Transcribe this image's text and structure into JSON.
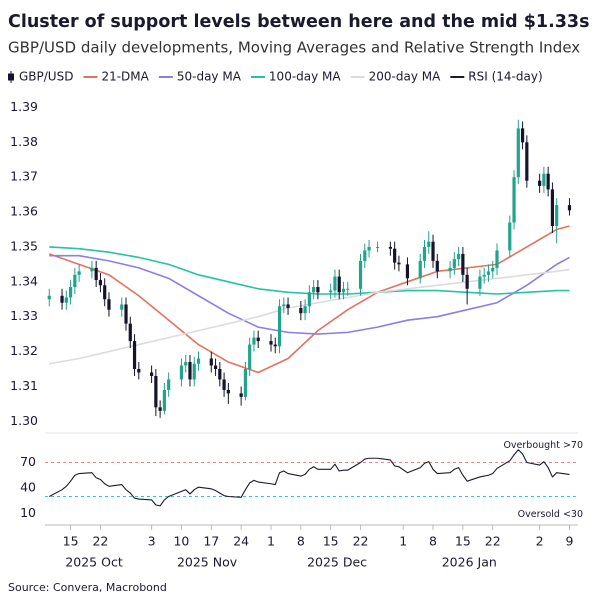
{
  "chart_data": [
    {
      "type": "candlestick",
      "title": "Cluster of support levels between here and the mid $1.33s",
      "subtitle": "GBP/USD daily developments, Moving Averages and Relative Strength Index",
      "source": "Source: Convera, Macrobond",
      "legend": "top",
      "grid": false,
      "xlim": [
        "2025-10-09",
        "2026-02-11"
      ],
      "xticks": [
        {
          "value": "2025-10-15",
          "label": "15"
        },
        {
          "value": "2025-10-22",
          "label": "22"
        },
        {
          "value": "2025-11-03",
          "label": "3"
        },
        {
          "value": "2025-11-10",
          "label": "10"
        },
        {
          "value": "2025-11-17",
          "label": "17"
        },
        {
          "value": "2025-11-24",
          "label": "24"
        },
        {
          "value": "2025-12-01",
          "label": "1"
        },
        {
          "value": "2025-12-08",
          "label": "8"
        },
        {
          "value": "2025-12-15",
          "label": "15"
        },
        {
          "value": "2025-12-22",
          "label": "22"
        },
        {
          "value": "2026-01-01",
          "label": "1"
        },
        {
          "value": "2026-01-08",
          "label": "8"
        },
        {
          "value": "2026-01-15",
          "label": "15"
        },
        {
          "value": "2026-01-22",
          "label": "22"
        },
        {
          "value": "2026-02-02",
          "label": "2"
        },
        {
          "value": "2026-02-09",
          "label": "9"
        }
      ],
      "month_labels": [
        "2025 Oct",
        "2025 Nov",
        "2025 Dec",
        "2026 Jan"
      ],
      "ylim": [
        1.2975,
        1.393
      ],
      "yticks": [
        {
          "value": 1.3,
          "label": "1.30"
        },
        1.31,
        1.32,
        1.33,
        1.34,
        1.35,
        1.36,
        1.37,
        1.38,
        1.39
      ],
      "series": [
        {
          "name": "GBP/USD",
          "type": "candlestick",
          "up_color": "#22a38c",
          "down_color": "#14142b",
          "x": [
            "2025-10-10",
            "2025-10-13",
            "2025-10-14",
            "2025-10-15",
            "2025-10-16",
            "2025-10-17",
            "2025-10-20",
            "2025-10-21",
            "2025-10-22",
            "2025-10-23",
            "2025-10-24",
            "2025-10-27",
            "2025-10-28",
            "2025-10-29",
            "2025-10-30",
            "2025-10-31",
            "2025-11-03",
            "2025-11-04",
            "2025-11-05",
            "2025-11-06",
            "2025-11-07",
            "2025-11-10",
            "2025-11-11",
            "2025-11-12",
            "2025-11-13",
            "2025-11-14",
            "2025-11-17",
            "2025-11-18",
            "2025-11-19",
            "2025-11-20",
            "2025-11-21",
            "2025-11-24",
            "2025-11-25",
            "2025-11-26",
            "2025-11-27",
            "2025-11-28",
            "2025-12-01",
            "2025-12-02",
            "2025-12-03",
            "2025-12-04",
            "2025-12-05",
            "2025-12-08",
            "2025-12-09",
            "2025-12-10",
            "2025-12-11",
            "2025-12-12",
            "2025-12-15",
            "2025-12-16",
            "2025-12-17",
            "2025-12-18",
            "2025-12-19",
            "2025-12-22",
            "2025-12-23",
            "2025-12-24",
            "2025-12-26",
            "2025-12-29",
            "2025-12-30",
            "2025-12-31",
            "2026-01-02",
            "2026-01-05",
            "2026-01-06",
            "2026-01-07",
            "2026-01-08",
            "2026-01-09",
            "2026-01-12",
            "2026-01-13",
            "2026-01-14",
            "2026-01-15",
            "2026-01-16",
            "2026-01-19",
            "2026-01-20",
            "2026-01-21",
            "2026-01-22",
            "2026-01-23",
            "2026-01-26",
            "2026-01-27",
            "2026-01-28",
            "2026-01-29",
            "2026-01-30",
            "2026-02-02",
            "2026-02-03",
            "2026-02-04",
            "2026-02-05",
            "2026-02-06",
            "2026-02-09"
          ],
          "open": [
            1.335,
            1.336,
            1.334,
            1.3355,
            1.3385,
            1.342,
            1.343,
            1.344,
            1.3405,
            1.339,
            1.335,
            1.332,
            1.3335,
            1.328,
            1.323,
            1.315,
            1.314,
            1.313,
            1.304,
            1.303,
            1.309,
            1.312,
            1.316,
            1.317,
            1.312,
            1.3165,
            1.318,
            1.316,
            1.315,
            1.312,
            1.309,
            1.308,
            1.307,
            1.315,
            1.322,
            1.324,
            1.323,
            1.322,
            1.3215,
            1.333,
            1.3335,
            1.3325,
            1.331,
            1.333,
            1.337,
            1.3385,
            1.337,
            1.3375,
            1.3415,
            1.337,
            1.338,
            1.338,
            1.346,
            1.349,
            1.35,
            1.35,
            1.3495,
            1.3455,
            1.345,
            1.341,
            1.346,
            1.35,
            1.3515,
            1.346,
            1.343,
            1.344,
            1.3465,
            1.348,
            1.342,
            1.338,
            1.3415,
            1.342,
            1.343,
            1.344,
            1.349,
            1.357,
            1.37,
            1.384,
            1.38,
            1.369,
            1.3675,
            1.371,
            1.3665,
            1.356,
            1.362
          ],
          "high": [
            1.338,
            1.338,
            1.3375,
            1.3405,
            1.344,
            1.345,
            1.346,
            1.346,
            1.3425,
            1.341,
            1.337,
            1.3355,
            1.3355,
            1.33,
            1.325,
            1.317,
            1.316,
            1.315,
            1.306,
            1.311,
            1.314,
            1.318,
            1.319,
            1.319,
            1.3185,
            1.32,
            1.32,
            1.318,
            1.317,
            1.314,
            1.311,
            1.31,
            1.317,
            1.324,
            1.326,
            1.326,
            1.325,
            1.324,
            1.335,
            1.3355,
            1.3355,
            1.3345,
            1.335,
            1.339,
            1.3405,
            1.3405,
            1.3395,
            1.3435,
            1.3435,
            1.34,
            1.34,
            1.348,
            1.351,
            1.352,
            1.3515,
            1.3515,
            1.3515,
            1.3475,
            1.347,
            1.348,
            1.352,
            1.3545,
            1.3535,
            1.348,
            1.346,
            1.3485,
            1.35,
            1.35,
            1.344,
            1.3435,
            1.344,
            1.345,
            1.346,
            1.351,
            1.359,
            1.372,
            1.3865,
            1.386,
            1.382,
            1.371,
            1.373,
            1.373,
            1.3685,
            1.364,
            1.364
          ],
          "low": [
            1.333,
            1.332,
            1.332,
            1.3335,
            1.3365,
            1.34,
            1.341,
            1.3385,
            1.337,
            1.333,
            1.33,
            1.33,
            1.326,
            1.321,
            1.313,
            1.312,
            1.311,
            1.3015,
            1.301,
            1.302,
            1.307,
            1.31,
            1.314,
            1.31,
            1.31,
            1.3145,
            1.314,
            1.313,
            1.31,
            1.307,
            1.305,
            1.3045,
            1.306,
            1.313,
            1.32,
            1.321,
            1.32,
            1.3195,
            1.3195,
            1.331,
            1.3305,
            1.329,
            1.329,
            1.331,
            1.335,
            1.335,
            1.335,
            1.3355,
            1.335,
            1.335,
            1.336,
            1.336,
            1.344,
            1.347,
            1.3485,
            1.3475,
            1.3435,
            1.343,
            1.339,
            1.3395,
            1.344,
            1.348,
            1.344,
            1.341,
            1.341,
            1.342,
            1.3445,
            1.34,
            1.3335,
            1.336,
            1.3395,
            1.34,
            1.341,
            1.342,
            1.347,
            1.355,
            1.368,
            1.378,
            1.367,
            1.3655,
            1.3655,
            1.3645,
            1.354,
            1.351,
            1.359
          ],
          "close": [
            1.336,
            1.334,
            1.3355,
            1.3385,
            1.342,
            1.343,
            1.344,
            1.3405,
            1.339,
            1.335,
            1.332,
            1.3335,
            1.328,
            1.323,
            1.315,
            1.314,
            1.313,
            1.304,
            1.303,
            1.309,
            1.312,
            1.316,
            1.317,
            1.312,
            1.3165,
            1.318,
            1.316,
            1.315,
            1.312,
            1.309,
            1.308,
            1.307,
            1.315,
            1.322,
            1.324,
            1.323,
            1.322,
            1.3215,
            1.333,
            1.3335,
            1.3325,
            1.331,
            1.333,
            1.337,
            1.3385,
            1.337,
            1.3375,
            1.3415,
            1.337,
            1.338,
            1.338,
            1.346,
            1.349,
            1.35,
            1.35,
            1.3495,
            1.3455,
            1.345,
            1.341,
            1.346,
            1.35,
            1.3515,
            1.346,
            1.343,
            1.344,
            1.3465,
            1.348,
            1.342,
            1.338,
            1.3415,
            1.342,
            1.343,
            1.344,
            1.349,
            1.357,
            1.37,
            1.384,
            1.38,
            1.369,
            1.3675,
            1.371,
            1.3665,
            1.356,
            1.362,
            1.3605
          ]
        },
        {
          "name": "21-DMA",
          "type": "line",
          "color": "#e2735f",
          "x": [
            "2025-10-10",
            "2025-10-17",
            "2025-10-24",
            "2025-10-31",
            "2025-11-07",
            "2025-11-14",
            "2025-11-21",
            "2025-11-28",
            "2025-12-05",
            "2025-12-12",
            "2025-12-19",
            "2025-12-26",
            "2026-01-02",
            "2026-01-09",
            "2026-01-16",
            "2026-01-23",
            "2026-01-30",
            "2026-02-06",
            "2026-02-09"
          ],
          "values": [
            1.348,
            1.345,
            1.342,
            1.336,
            1.329,
            1.322,
            1.317,
            1.314,
            1.318,
            1.326,
            1.332,
            1.337,
            1.34,
            1.343,
            1.344,
            1.345,
            1.35,
            1.355,
            1.356
          ]
        },
        {
          "name": "50-day MA",
          "type": "line",
          "color": "#8b7fe3",
          "x": [
            "2025-10-10",
            "2025-10-17",
            "2025-10-24",
            "2025-10-31",
            "2025-11-07",
            "2025-11-14",
            "2025-11-21",
            "2025-11-28",
            "2025-12-05",
            "2025-12-12",
            "2025-12-19",
            "2025-12-26",
            "2026-01-02",
            "2026-01-09",
            "2026-01-16",
            "2026-01-23",
            "2026-01-30",
            "2026-02-06",
            "2026-02-09"
          ],
          "values": [
            1.3475,
            1.3475,
            1.346,
            1.344,
            1.341,
            1.336,
            1.331,
            1.327,
            1.3255,
            1.325,
            1.3255,
            1.327,
            1.329,
            1.33,
            1.332,
            1.334,
            1.339,
            1.345,
            1.347
          ]
        },
        {
          "name": "100-day MA",
          "type": "line",
          "color": "#25c2a6",
          "x": [
            "2025-10-10",
            "2025-10-17",
            "2025-10-24",
            "2025-10-31",
            "2025-11-07",
            "2025-11-14",
            "2025-11-21",
            "2025-11-28",
            "2025-12-05",
            "2025-12-12",
            "2025-12-19",
            "2025-12-26",
            "2026-01-02",
            "2026-01-09",
            "2026-01-16",
            "2026-01-23",
            "2026-01-30",
            "2026-02-06",
            "2026-02-09"
          ],
          "values": [
            1.35,
            1.3495,
            1.3485,
            1.347,
            1.345,
            1.342,
            1.34,
            1.338,
            1.337,
            1.3365,
            1.3365,
            1.337,
            1.3375,
            1.3375,
            1.337,
            1.3365,
            1.337,
            1.3375,
            1.3375
          ]
        },
        {
          "name": "200-day MA",
          "type": "line",
          "color": "#dcdcdc",
          "x": [
            "2025-10-10",
            "2025-10-17",
            "2025-10-24",
            "2025-10-31",
            "2025-11-07",
            "2025-11-14",
            "2025-11-21",
            "2025-11-28",
            "2025-12-05",
            "2025-12-12",
            "2025-12-19",
            "2025-12-26",
            "2026-01-02",
            "2026-01-09",
            "2026-01-16",
            "2026-01-23",
            "2026-01-30",
            "2026-02-06",
            "2026-02-09"
          ],
          "values": [
            1.3165,
            1.318,
            1.32,
            1.322,
            1.324,
            1.326,
            1.328,
            1.33,
            1.3325,
            1.334,
            1.3355,
            1.337,
            1.338,
            1.339,
            1.34,
            1.341,
            1.342,
            1.343,
            1.3435
          ]
        }
      ]
    },
    {
      "type": "line",
      "ylim": [
        0,
        100
      ],
      "yticks": [
        10,
        40,
        70
      ],
      "reference_lines": [
        {
          "value": 70,
          "label": "Overbought >70",
          "color": "#e38a86"
        },
        {
          "value": 30,
          "label": "Oversold <30",
          "color": "#3cc7c4"
        }
      ],
      "series": [
        {
          "name": "RSI (14-day)",
          "type": "line",
          "color": "#1b1b2f",
          "x": [
            "2025-10-10",
            "2025-10-13",
            "2025-10-14",
            "2025-10-15",
            "2025-10-16",
            "2025-10-17",
            "2025-10-20",
            "2025-10-21",
            "2025-10-22",
            "2025-10-23",
            "2025-10-24",
            "2025-10-27",
            "2025-10-28",
            "2025-10-29",
            "2025-10-30",
            "2025-10-31",
            "2025-11-03",
            "2025-11-04",
            "2025-11-05",
            "2025-11-06",
            "2025-11-07",
            "2025-11-10",
            "2025-11-11",
            "2025-11-12",
            "2025-11-13",
            "2025-11-14",
            "2025-11-17",
            "2025-11-18",
            "2025-11-19",
            "2025-11-20",
            "2025-11-21",
            "2025-11-24",
            "2025-11-25",
            "2025-11-26",
            "2025-11-27",
            "2025-11-28",
            "2025-12-01",
            "2025-12-02",
            "2025-12-03",
            "2025-12-04",
            "2025-12-05",
            "2025-12-08",
            "2025-12-09",
            "2025-12-10",
            "2025-12-11",
            "2025-12-12",
            "2025-12-15",
            "2025-12-16",
            "2025-12-17",
            "2025-12-18",
            "2025-12-19",
            "2025-12-22",
            "2025-12-23",
            "2025-12-24",
            "2025-12-26",
            "2025-12-29",
            "2025-12-30",
            "2025-12-31",
            "2026-01-02",
            "2026-01-05",
            "2026-01-06",
            "2026-01-07",
            "2026-01-08",
            "2026-01-09",
            "2026-01-12",
            "2026-01-13",
            "2026-01-14",
            "2026-01-15",
            "2026-01-16",
            "2026-01-19",
            "2026-01-20",
            "2026-01-21",
            "2026-01-22",
            "2026-01-23",
            "2026-01-26",
            "2026-01-27",
            "2026-01-28",
            "2026-01-29",
            "2026-01-30",
            "2026-02-02",
            "2026-02-03",
            "2026-02-04",
            "2026-02-05",
            "2026-02-06",
            "2026-02-09"
          ],
          "values": [
            30,
            38,
            42,
            48,
            55,
            57,
            58,
            52,
            50,
            45,
            42,
            44,
            38,
            34,
            28,
            27,
            26,
            20,
            19,
            26,
            30,
            36,
            38,
            33,
            38,
            41,
            39,
            37,
            34,
            31,
            30,
            29,
            38,
            46,
            49,
            47,
            45,
            44,
            58,
            60,
            57,
            54,
            56,
            62,
            65,
            62,
            62,
            68,
            60,
            61,
            61,
            70,
            74,
            75,
            75,
            73,
            66,
            65,
            58,
            64,
            69,
            71,
            62,
            57,
            58,
            62,
            64,
            55,
            48,
            53,
            54,
            55,
            57,
            63,
            72,
            79,
            85,
            80,
            70,
            67,
            71,
            64,
            53,
            58,
            56
          ]
        }
      ]
    }
  ]
}
